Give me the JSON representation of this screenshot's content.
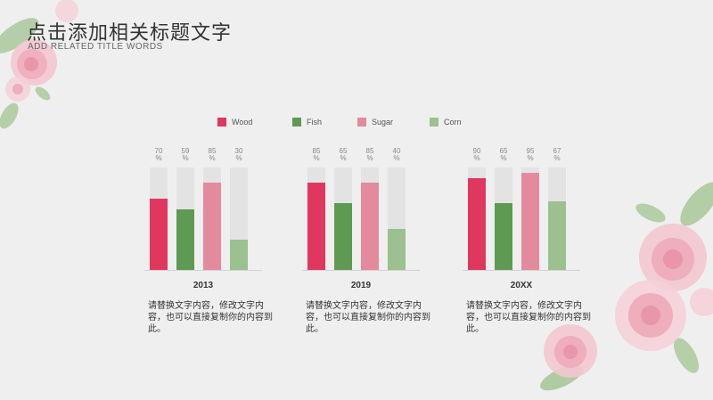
{
  "title": "点击添加相关标题文字",
  "subtitle": "ADD RELATED TITLE WORDS",
  "colors": {
    "wood": "#e0375f",
    "fish": "#5f9a52",
    "sugar": "#e38a9e",
    "corn": "#9cc090",
    "track": "#e3e3e3",
    "background": "#efefef"
  },
  "chart_data": {
    "type": "bar",
    "legend_position": "top-center",
    "ylim": [
      0,
      100
    ],
    "series_names": [
      "Wood",
      "Fish",
      "Sugar",
      "Corn"
    ],
    "groups": [
      {
        "year": "2013",
        "values": [
          70,
          59,
          85,
          30
        ],
        "description": "请替换文字内容，修改文字内容，也可以直接复制你的内容到此。"
      },
      {
        "year": "2019",
        "values": [
          85,
          65,
          85,
          40
        ],
        "description": "请替换文字内容，修改文字内容，也可以直接复制你的内容到此。"
      },
      {
        "year": "20XX",
        "values": [
          90,
          65,
          95,
          67
        ],
        "description": "请替换文字内容，修改文字内容，也可以直接复制你的内容到此。"
      }
    ]
  }
}
